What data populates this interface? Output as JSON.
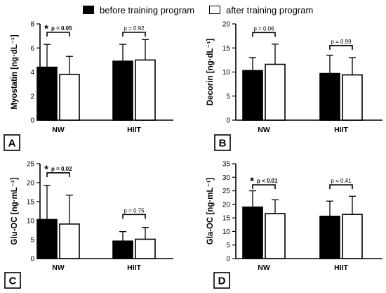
{
  "legend": {
    "before_label": "before training program",
    "after_label": "after training program",
    "before_color": "#000000",
    "after_color": "#ffffff"
  },
  "chart_data": [
    {
      "type": "bar",
      "panel": "A",
      "ylabel": "Myostatin [ng·dL⁻¹]",
      "ylim": [
        0,
        8
      ],
      "yticks": [
        0,
        2,
        4,
        6,
        8
      ],
      "categories": [
        "NW",
        "HIIT"
      ],
      "series": [
        {
          "name": "before training program",
          "values": [
            4.4,
            4.9
          ],
          "err": [
            1.9,
            1.4
          ]
        },
        {
          "name": "after training program",
          "values": [
            3.8,
            5.0
          ],
          "err": [
            1.5,
            1.7
          ]
        }
      ],
      "annotations": [
        {
          "category": "NW",
          "text": "p = 0.05",
          "significant": true,
          "y": 7.3
        },
        {
          "category": "HIIT",
          "text": "p = 0.92",
          "significant": false,
          "y": 7.3
        }
      ]
    },
    {
      "type": "bar",
      "panel": "B",
      "ylabel": "Decorin [ng·dL⁻¹]",
      "ylim": [
        0,
        20
      ],
      "yticks": [
        0,
        5,
        10,
        15,
        20
      ],
      "categories": [
        "NW",
        "HIIT"
      ],
      "series": [
        {
          "name": "before training program",
          "values": [
            10.3,
            9.7
          ],
          "err": [
            2.7,
            3.8
          ]
        },
        {
          "name": "after training program",
          "values": [
            11.6,
            9.4
          ],
          "err": [
            4.2,
            3.6
          ]
        }
      ],
      "annotations": [
        {
          "category": "NW",
          "text": "p = 0.06",
          "significant": false,
          "y": 18.2
        },
        {
          "category": "HIIT",
          "text": "p = 0.99",
          "significant": false,
          "y": 15.5
        }
      ]
    },
    {
      "type": "bar",
      "panel": "C",
      "ylabel": "Glu-OC [ng·mL⁻¹]",
      "ylim": [
        0,
        25
      ],
      "yticks": [
        0,
        5,
        10,
        15,
        20,
        25
      ],
      "categories": [
        "NW",
        "HIIT"
      ],
      "series": [
        {
          "name": "before training program",
          "values": [
            10.3,
            4.6
          ],
          "err": [
            9.0,
            2.5
          ]
        },
        {
          "name": "after training program",
          "values": [
            9.1,
            5.1
          ],
          "err": [
            7.6,
            3.1
          ]
        }
      ],
      "annotations": [
        {
          "category": "NW",
          "text": "p = 0.02",
          "significant": true,
          "y": 22.6
        },
        {
          "category": "HIIT",
          "text": "p = 0.75",
          "significant": false,
          "y": 11.6
        }
      ]
    },
    {
      "type": "bar",
      "panel": "D",
      "ylabel": "Gla-OC [ng·mL⁻¹]",
      "ylim": [
        0,
        35
      ],
      "yticks": [
        0,
        5,
        10,
        15,
        20,
        25,
        30,
        35
      ],
      "categories": [
        "NW",
        "HIIT"
      ],
      "series": [
        {
          "name": "before training program",
          "values": [
            19.0,
            15.6
          ],
          "err": [
            6.0,
            5.6
          ]
        },
        {
          "name": "after training program",
          "values": [
            16.6,
            16.3
          ],
          "err": [
            5.1,
            6.7
          ]
        }
      ],
      "annotations": [
        {
          "category": "NW",
          "text": "p < 0.01",
          "significant": true,
          "y": 27.2
        },
        {
          "category": "HIIT",
          "text": "p = 0.41",
          "significant": false,
          "y": 27.2
        }
      ]
    }
  ]
}
